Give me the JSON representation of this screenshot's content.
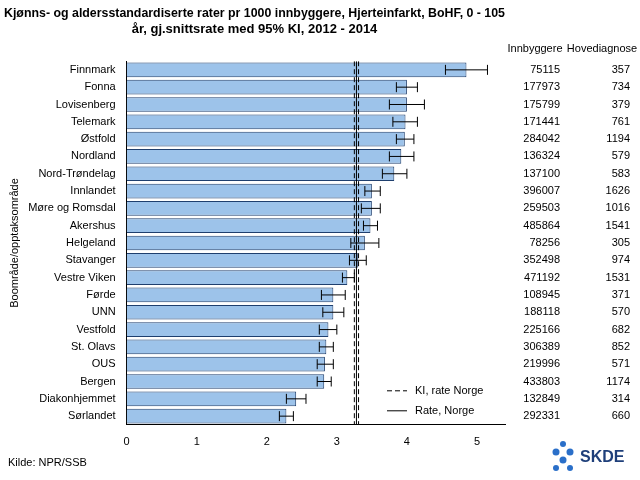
{
  "chart_data": {
    "type": "bar",
    "orientation": "horizontal",
    "title": [
      "Kjønns- og aldersstandardiserte rater pr 1000 innbyggere, Hjerteinfarkt, BoHF, 0 - 105",
      "år, gj.snittsrate med 95% KI, 2012 - 2014"
    ],
    "y_label": "Boområde/opptaksområde",
    "categories": [
      "Finnmark",
      "Fonna",
      "Lovisenberg",
      "Telemark",
      "Østfold",
      "Nordland",
      "Nord-Trøndelag",
      "Innlandet",
      "Møre og Romsdal",
      "Akershus",
      "Helgeland",
      "Stavanger",
      "Vestre Viken",
      "Førde",
      "UNN",
      "Vestfold",
      "St. Olavs",
      "OUS",
      "Bergen",
      "Diakonhjemmet",
      "Sørlandet"
    ],
    "values": [
      4.85,
      4.0,
      4.0,
      3.98,
      3.97,
      3.92,
      3.82,
      3.5,
      3.5,
      3.48,
      3.4,
      3.3,
      3.15,
      2.95,
      2.95,
      2.88,
      2.85,
      2.83,
      2.82,
      2.42,
      2.28
    ],
    "error_low": [
      4.55,
      3.85,
      3.75,
      3.8,
      3.85,
      3.75,
      3.65,
      3.4,
      3.35,
      3.38,
      3.2,
      3.18,
      3.08,
      2.78,
      2.8,
      2.75,
      2.75,
      2.72,
      2.72,
      2.28,
      2.18
    ],
    "error_high": [
      5.15,
      4.15,
      4.25,
      4.15,
      4.1,
      4.1,
      4.0,
      3.62,
      3.62,
      3.58,
      3.6,
      3.42,
      3.25,
      3.12,
      3.1,
      3.0,
      2.95,
      2.95,
      2.92,
      2.56,
      2.38
    ],
    "color": "#9dc3ea",
    "xlim": [
      0,
      5.4
    ],
    "xticks": [
      0,
      1,
      2,
      3,
      4,
      5
    ],
    "grid": false,
    "legend": "lower right",
    "reference_lines": [
      {
        "name": "KI, rate Norge",
        "values": [
          3.25,
          3.31
        ],
        "line_style": "dashed"
      },
      {
        "name": "Rate, Norge",
        "values": [
          3.28
        ],
        "line_style": "solid"
      }
    ],
    "columns": [
      {
        "name": "Innbyggere",
        "values": [
          75115,
          177973,
          175799,
          171441,
          284042,
          136324,
          137100,
          396007,
          259503,
          485864,
          78256,
          352498,
          471192,
          108945,
          188118,
          225166,
          306389,
          219996,
          433803,
          132849,
          292331
        ]
      },
      {
        "name": "Hovediagnose",
        "values": [
          357,
          734,
          379,
          761,
          1194,
          579,
          583,
          1626,
          1016,
          1541,
          305,
          974,
          1531,
          371,
          570,
          682,
          852,
          571,
          1174,
          314,
          660
        ]
      }
    ],
    "source": "Kilde: NPR/SSB",
    "logo": "SKDE"
  }
}
